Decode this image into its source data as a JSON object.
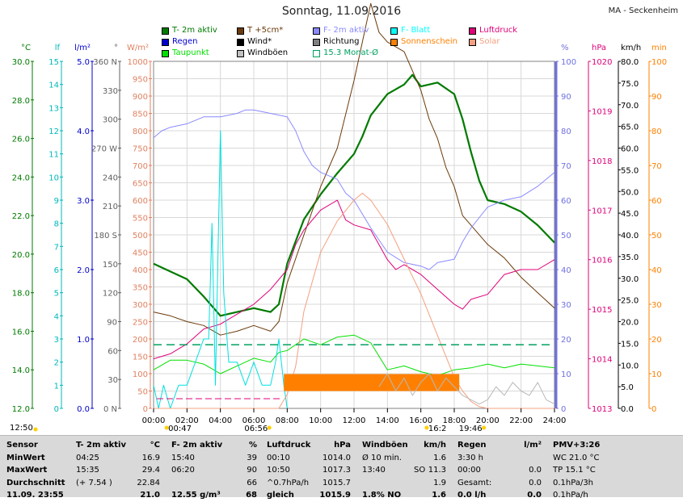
{
  "title": "Sonntag, 11.09.2016",
  "station": "MA - Seckenheim",
  "legend": [
    {
      "label": "T- 2m aktiv",
      "color": "#007a00",
      "kind": "fill"
    },
    {
      "label": "T +5cm*",
      "color": "#6b3a0a",
      "kind": "fill"
    },
    {
      "label": "F- 2m aktiv",
      "color": "#8a8aff",
      "kind": "fill"
    },
    {
      "label": "F- Blatt",
      "color": "#00ffff",
      "kind": "fill"
    },
    {
      "label": "Luftdruck",
      "color": "#e0007a",
      "kind": "fill"
    },
    {
      "label": "Regen",
      "color": "#0000cc",
      "kind": "fill"
    },
    {
      "label": "Wind*",
      "color": "#000000",
      "kind": "fill"
    },
    {
      "label": "Richtung",
      "color": "#808080",
      "kind": "fill"
    },
    {
      "label": "Sonnenschein",
      "color": "#ff8000",
      "kind": "fill"
    },
    {
      "label": "Solar",
      "color": "#f4a080",
      "kind": "fill"
    },
    {
      "label": "Taupunkt",
      "color": "#00e000",
      "kind": "fill"
    },
    {
      "label": "Windböen",
      "color": "#c0c0c0",
      "kind": "fill"
    },
    {
      "label": "15.3 Monat-Ø",
      "color": "#00a060",
      "kind": "outline"
    }
  ],
  "axes": {
    "temp": {
      "unit": "°C",
      "color": "#007a00",
      "ticks": [
        "12.0",
        "14.0",
        "16.0",
        "18.0",
        "20.0",
        "22.0",
        "24.0",
        "26.0",
        "28.0",
        "30.0"
      ]
    },
    "leaf": {
      "unit": "lf",
      "color": "#00b8b8",
      "ticks": [
        "0",
        "1",
        "2",
        "3",
        "4",
        "5",
        "6",
        "7",
        "8",
        "9",
        "10",
        "11",
        "12",
        "13",
        "14",
        "15"
      ]
    },
    "rain": {
      "unit": "l/m²",
      "color": "#0000cc",
      "ticks": [
        "0.0",
        "1.0",
        "2.0",
        "3.0",
        "4.0",
        "5.0"
      ]
    },
    "dir": {
      "unit": "°",
      "color": "#606060",
      "ticks": [
        "0 N",
        "",
        "",
        "90",
        "",
        "",
        "180 S",
        "",
        "",
        "270 W",
        "",
        "",
        "360 N"
      ],
      "minor": [
        "0",
        "30",
        "60",
        "90",
        "120",
        "150",
        "180",
        "210",
        "240",
        "270",
        "300",
        "330",
        "360"
      ]
    },
    "solar": {
      "unit": "W/m²",
      "color": "#e08060",
      "ticks": [
        "0",
        "50",
        "100",
        "150",
        "200",
        "250",
        "300",
        "350",
        "400",
        "450",
        "500",
        "550",
        "600",
        "650",
        "700",
        "750",
        "800",
        "850",
        "900",
        "950",
        "1000"
      ]
    },
    "hum": {
      "unit": "%",
      "color": "#7070e0",
      "ticks": [
        "0",
        "10",
        "20",
        "30",
        "40",
        "50",
        "60",
        "70",
        "80",
        "90",
        "100"
      ]
    },
    "press": {
      "unit": "hPa",
      "color": "#e0007a",
      "ticks": [
        "1013",
        "1014",
        "1015",
        "1016",
        "1017",
        "1018",
        "1019",
        "1020"
      ]
    },
    "speed": {
      "unit": "km/h",
      "color": "#000000",
      "ticks": [
        "0.0",
        "5.0",
        "10.0",
        "15.0",
        "20.0",
        "25.0",
        "30.0",
        "35.0",
        "40.0",
        "45.0",
        "50.0",
        "55.0",
        "60.0",
        "65.0",
        "70.0",
        "75.0",
        "80.0"
      ]
    },
    "min": {
      "unit": "min",
      "color": "#ff8000",
      "ticks": [
        "0",
        "10",
        "20",
        "30",
        "40",
        "50",
        "60",
        "70",
        "80",
        "90",
        "100"
      ]
    }
  },
  "xticks": [
    "00:00",
    "02:00",
    "04:00",
    "06:00",
    "08:00",
    "10:00",
    "12:00",
    "14:00",
    "16:00",
    "18:00",
    "20:00",
    "22:00",
    "24:00"
  ],
  "time_markers": {
    "left": "12:50",
    "sunrise_a": "00:47",
    "sunrise_b": "06:56",
    "sunset_a": "16:2",
    "sunset_b": "19:46"
  },
  "chart_data": {
    "type": "line",
    "title": "Sonntag, 11.09.2016",
    "x_unit": "hours",
    "xlim": [
      0,
      24
    ],
    "series": [
      {
        "name": "T- 2m aktiv",
        "axis": "temp",
        "x": [
          0,
          1,
          2,
          3,
          4,
          4.5,
          5,
          6,
          7,
          7.5,
          8,
          9,
          10,
          11,
          12,
          12.5,
          13,
          14,
          15,
          15.5,
          16,
          17,
          18,
          18.5,
          19,
          19.5,
          20,
          21,
          22,
          23,
          24
        ],
        "y": [
          19.5,
          19.1,
          18.7,
          17.8,
          16.8,
          16.9,
          17.0,
          17.2,
          17.0,
          17.4,
          19.5,
          21.8,
          23.1,
          24.2,
          25.2,
          26.1,
          27.2,
          28.3,
          28.8,
          29.3,
          28.7,
          28.9,
          28.3,
          27.0,
          25.3,
          23.8,
          22.8,
          22.6,
          22.2,
          21.5,
          20.6
        ]
      },
      {
        "name": "T +5cm*",
        "axis": "temp",
        "x": [
          0,
          1,
          2,
          3,
          4,
          5,
          6,
          7,
          7.5,
          8,
          9,
          10,
          11,
          12,
          12.5,
          13,
          13.5,
          14,
          15,
          16,
          16.5,
          17,
          17.5,
          18,
          18.5,
          19,
          20,
          21,
          22,
          23,
          24
        ],
        "y": [
          17.0,
          16.8,
          16.5,
          16.3,
          15.8,
          16.0,
          16.3,
          16.0,
          16.5,
          18.5,
          21.0,
          23.5,
          25.5,
          29.0,
          31.0,
          33.0,
          31.5,
          31.0,
          30.5,
          28.5,
          27.0,
          26.0,
          24.5,
          23.5,
          22.0,
          21.5,
          20.5,
          19.8,
          18.8,
          18.0,
          17.2
        ]
      },
      {
        "name": "F- 2m aktiv",
        "axis": "hum",
        "x": [
          0,
          0.5,
          1,
          2,
          3,
          4,
          5,
          5.5,
          6,
          7,
          8,
          8.5,
          9,
          9.5,
          10,
          11,
          11.5,
          12,
          13,
          14,
          15,
          16,
          16.5,
          17,
          18,
          18.5,
          19,
          19.5,
          20,
          21,
          22,
          23,
          24
        ],
        "y": [
          78,
          80,
          81,
          82,
          84,
          84,
          85,
          86,
          86,
          85,
          84,
          80,
          74,
          70,
          68,
          66,
          62,
          60,
          52,
          45,
          42,
          41,
          40,
          42,
          43,
          48,
          52,
          55,
          58,
          60,
          61,
          64,
          68
        ]
      },
      {
        "name": "Luftdruck",
        "axis": "press",
        "x": [
          0,
          1,
          2,
          3,
          4,
          5,
          6,
          7,
          8,
          8.5,
          9,
          10,
          11,
          11.5,
          12,
          13,
          14,
          14.5,
          15,
          16,
          17,
          18,
          18.5,
          19,
          20,
          21,
          22,
          23,
          24
        ],
        "y": [
          1014.0,
          1014.1,
          1014.3,
          1014.6,
          1014.7,
          1014.9,
          1015.1,
          1015.4,
          1015.8,
          1016.3,
          1016.6,
          1017.0,
          1017.2,
          1016.8,
          1016.7,
          1016.6,
          1016.0,
          1015.8,
          1015.9,
          1015.7,
          1015.4,
          1015.1,
          1015.0,
          1015.2,
          1015.3,
          1015.7,
          1015.8,
          1015.8,
          1016.0
        ]
      },
      {
        "name": "Taupunkt",
        "axis": "temp",
        "x": [
          0,
          1,
          2,
          3,
          4,
          5,
          6,
          7,
          7.5,
          8,
          9,
          10,
          11,
          12,
          13,
          14,
          15,
          16,
          17,
          18,
          19,
          20,
          21,
          22,
          23,
          24
        ],
        "y": [
          14.0,
          14.5,
          14.5,
          14.3,
          13.8,
          14.2,
          14.6,
          14.4,
          14.9,
          15.0,
          15.6,
          15.3,
          15.7,
          15.8,
          15.4,
          14.0,
          14.2,
          13.9,
          13.7,
          14.0,
          14.1,
          14.3,
          14.1,
          14.3,
          14.2,
          14.1
        ]
      },
      {
        "name": "F- Blatt",
        "axis": "leaf",
        "x": [
          0,
          0.3,
          0.6,
          1,
          1.5,
          2,
          2.5,
          3,
          3.3,
          3.5,
          3.7,
          4,
          4.2,
          4.5,
          5,
          5.5,
          6,
          6.5,
          7,
          7.3,
          7.5,
          7.8,
          8
        ],
        "y": [
          1,
          0,
          1,
          0,
          1,
          1,
          2,
          3,
          3,
          8,
          1,
          12,
          5,
          2,
          2,
          1,
          2,
          1,
          1,
          2,
          3,
          1,
          0
        ]
      },
      {
        "name": "Solar",
        "axis": "solar",
        "x": [
          0,
          7.5,
          8,
          8.5,
          9,
          10,
          11,
          12,
          12.5,
          13,
          14,
          15,
          16,
          17,
          18,
          18.5,
          19,
          19.5,
          20,
          24
        ],
        "y": [
          0,
          0,
          40,
          120,
          280,
          450,
          540,
          600,
          620,
          600,
          530,
          430,
          330,
          210,
          90,
          50,
          20,
          5,
          0,
          0
        ]
      },
      {
        "name": "Sonnenschein",
        "axis": "min",
        "x": [
          7.8,
          18.3
        ],
        "y": [
          5,
          5
        ]
      },
      {
        "name": "15.3 Monat-Ø",
        "axis": "temp",
        "x": [
          0,
          24
        ],
        "y": [
          15.3,
          15.3
        ]
      },
      {
        "name": "Windböen",
        "axis": "speed",
        "x": [
          13.5,
          14,
          14.5,
          15,
          15.5,
          16,
          16.5,
          17,
          17.5,
          18,
          18.5,
          19,
          19.5,
          20,
          20.5,
          21,
          21.5,
          22,
          22.5,
          23,
          23.5,
          24
        ],
        "y": [
          5,
          8,
          4,
          7,
          3,
          6,
          8,
          4,
          7,
          5,
          3,
          2,
          1,
          2,
          5,
          3,
          6,
          4,
          3,
          6,
          2,
          1
        ]
      }
    ]
  },
  "stats": {
    "labels": {
      "title": "Sensor",
      "min": "MinWert",
      "max": "MaxWert",
      "avg": "Durchschnitt",
      "last": "11.09. 23:55"
    },
    "temp": {
      "title": "T- 2m aktiv",
      "unit": "°C",
      "min_time": "04:25",
      "min_val": "16.9",
      "max_time": "15:35",
      "max_val": "29.4",
      "avg_note": "(+ 7.54 )",
      "avg_val": "22.84",
      "last_val": "21.0"
    },
    "hum": {
      "title": "F- 2m aktiv",
      "unit": "%",
      "min_time": "15:40",
      "min_val": "39",
      "max_time": "06:20",
      "max_val": "90",
      "avg_val": "66",
      "last_note": "12.55 g/m³",
      "last_val": "68"
    },
    "press": {
      "title": "Luftdruck",
      "unit": "hPa",
      "min_time": "00:10",
      "min_val": "1014.0",
      "max_time": "10:50",
      "max_val": "1017.3",
      "avg_note": "^0.7hPa/h",
      "avg_val": "1015.7",
      "last_note": "gleich",
      "last_val": "1015.9"
    },
    "wind": {
      "title": "Windböen",
      "unit": "km/h",
      "min_label": "Ø 10 min.",
      "min_val": "1.6",
      "max_time": "13:40",
      "max_dir": "SO",
      "max_val": "11.3",
      "avg_val": "1.9",
      "last_note": "1.8% NO",
      "last_val": "1.6"
    },
    "rain": {
      "title": "Regen",
      "unit": "l/m²",
      "min_time": "3:30 h",
      "max_time": "00:00",
      "max_val": "0.0",
      "avg_label": "Gesamt:",
      "avg_val": "0.0",
      "last_note": "0.0 l/h",
      "last_val": "0.0"
    },
    "pmv": {
      "title": "PMV+3:26",
      "line1": "WC 21.0 °C",
      "line2": "TP 15.1 °C",
      "line3": "0.1hPa/3h",
      "line4": "0.1hPa/h"
    }
  }
}
